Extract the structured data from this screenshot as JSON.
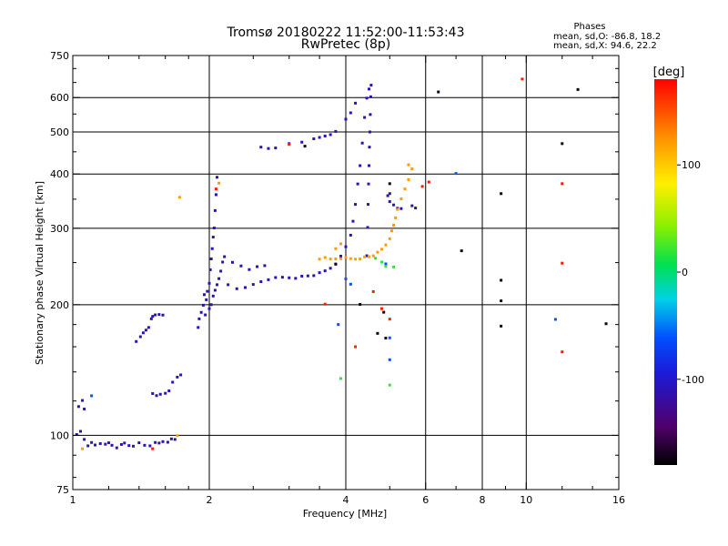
{
  "chart_data": {
    "type": "scatter",
    "title": "Tromsø 20180222 11:52:00-11:53:43",
    "subtitle": "RwPretec (8p)",
    "xlabel": "Frequency [MHz]",
    "ylabel": "Stationary phase Virtual Height [km]",
    "x_scale": "log",
    "y_scale": "log",
    "xlim": [
      1,
      16
    ],
    "ylim": [
      75,
      750
    ],
    "x_ticks": [
      1,
      2,
      4,
      6,
      8,
      10,
      16
    ],
    "x_ticklabels": [
      "1",
      "2",
      "4",
      "6",
      "8",
      "10",
      "16"
    ],
    "y_ticks": [
      75,
      100,
      200,
      300,
      400,
      500,
      600,
      750
    ],
    "y_ticklabels": [
      "75",
      "100",
      "200",
      "300",
      "400",
      "500",
      "600",
      "750"
    ],
    "x_gridlines": [
      2,
      4,
      6,
      8,
      10
    ],
    "y_gridlines": [
      100,
      200,
      300,
      400,
      500,
      600
    ],
    "grid": true,
    "stats": {
      "header": "Phases",
      "line_o": "mean, sd,O: -86.8, 18.2",
      "line_x": "mean, sd,X: 94.6, 22.2"
    },
    "colorbar": {
      "label": "[deg]",
      "range": [
        -180,
        180
      ],
      "ticks": [
        100,
        0,
        -100
      ],
      "ticklabels": [
        "100",
        "0",
        "-100"
      ]
    },
    "series": [
      {
        "color_value": -110,
        "comment": "O-mode traces (blue)",
        "points": [
          [
            1.02,
            100
          ],
          [
            1.04,
            102
          ],
          [
            1.06,
            98
          ],
          [
            1.08,
            95
          ],
          [
            1.1,
            96
          ],
          [
            1.12,
            95
          ],
          [
            1.15,
            96
          ],
          [
            1.18,
            95
          ],
          [
            1.2,
            96
          ],
          [
            1.22,
            95
          ],
          [
            1.25,
            94
          ],
          [
            1.28,
            95
          ],
          [
            1.3,
            96
          ],
          [
            1.33,
            95
          ],
          [
            1.36,
            94
          ],
          [
            1.4,
            96
          ],
          [
            1.44,
            95
          ],
          [
            1.48,
            95
          ],
          [
            1.52,
            96
          ],
          [
            1.55,
            96
          ],
          [
            1.58,
            97
          ],
          [
            1.62,
            96
          ],
          [
            1.65,
            98
          ],
          [
            1.68,
            98
          ],
          [
            1.03,
            117
          ],
          [
            1.05,
            120
          ],
          [
            1.06,
            115
          ],
          [
            1.38,
            165
          ],
          [
            1.41,
            168
          ],
          [
            1.43,
            172
          ],
          [
            1.45,
            175
          ],
          [
            1.47,
            178
          ],
          [
            1.49,
            185
          ],
          [
            1.5,
            188
          ],
          [
            1.52,
            190
          ],
          [
            1.55,
            189
          ],
          [
            1.58,
            189
          ],
          [
            1.5,
            125
          ],
          [
            1.53,
            124
          ],
          [
            1.56,
            124
          ],
          [
            1.6,
            125
          ],
          [
            1.63,
            127
          ],
          [
            1.66,
            132
          ],
          [
            1.7,
            136
          ],
          [
            1.73,
            138
          ],
          [
            1.89,
            178
          ],
          [
            1.9,
            185
          ],
          [
            1.92,
            192
          ],
          [
            1.94,
            200
          ],
          [
            1.95,
            210
          ],
          [
            1.97,
            205
          ],
          [
            1.98,
            215
          ],
          [
            2,
            225
          ],
          [
            2.01,
            240
          ],
          [
            2.02,
            255
          ],
          [
            2.03,
            270
          ],
          [
            2.04,
            285
          ],
          [
            2.05,
            300
          ],
          [
            2.06,
            330
          ],
          [
            2.07,
            360
          ],
          [
            2.08,
            392
          ],
          [
            2.02,
            200
          ],
          [
            2.04,
            210
          ],
          [
            2.06,
            215
          ],
          [
            2.08,
            222
          ],
          [
            2.1,
            230
          ],
          [
            2.12,
            240
          ],
          [
            2.14,
            250
          ],
          [
            2.16,
            258
          ],
          [
            1.96,
            190
          ],
          [
            2.0,
            195
          ],
          [
            2.2,
            222
          ],
          [
            2.3,
            218
          ],
          [
            2.4,
            220
          ],
          [
            2.5,
            222
          ],
          [
            2.6,
            226
          ],
          [
            2.7,
            229
          ],
          [
            2.8,
            230
          ],
          [
            2.9,
            231
          ],
          [
            3.0,
            231
          ],
          [
            3.1,
            231
          ],
          [
            3.2,
            232
          ],
          [
            3.3,
            233
          ],
          [
            3.4,
            234
          ],
          [
            3.5,
            236
          ],
          [
            3.6,
            239
          ],
          [
            3.7,
            243
          ],
          [
            3.8,
            249
          ],
          [
            3.9,
            258
          ],
          [
            4.0,
            272
          ],
          [
            4.1,
            290
          ],
          [
            4.15,
            310
          ],
          [
            4.2,
            340
          ],
          [
            4.25,
            380
          ],
          [
            4.3,
            420
          ],
          [
            4.35,
            470
          ],
          [
            4.4,
            540
          ],
          [
            4.45,
            600
          ],
          [
            4.5,
            625
          ],
          [
            2.25,
            250
          ],
          [
            2.35,
            246
          ],
          [
            2.45,
            242
          ],
          [
            2.55,
            244
          ],
          [
            2.65,
            246
          ],
          [
            4.45,
            260
          ],
          [
            4.47,
            300
          ],
          [
            4.48,
            340
          ],
          [
            4.49,
            380
          ],
          [
            4.5,
            420
          ],
          [
            4.51,
            460
          ],
          [
            4.52,
            500
          ],
          [
            4.53,
            550
          ],
          [
            4.54,
            600
          ],
          [
            4.55,
            640
          ],
          [
            2.6,
            462
          ],
          [
            2.7,
            460
          ],
          [
            2.8,
            458
          ],
          [
            3.0,
            470
          ],
          [
            3.2,
            475
          ],
          [
            3.4,
            480
          ],
          [
            3.5,
            485
          ],
          [
            3.6,
            490
          ],
          [
            3.7,
            495
          ],
          [
            3.8,
            500
          ],
          [
            4.0,
            535
          ],
          [
            4.1,
            555
          ],
          [
            4.2,
            580
          ],
          [
            5.0,
            345
          ],
          [
            5.1,
            340
          ],
          [
            5.2,
            335
          ],
          [
            5.3,
            332
          ],
          [
            5.6,
            338
          ],
          [
            5.7,
            335
          ],
          [
            4.95,
            355
          ],
          [
            5.0,
            360
          ]
        ]
      },
      {
        "color_value": 120,
        "comment": "X-mode trace (yellow)",
        "points": [
          [
            3.5,
            255
          ],
          [
            3.6,
            258
          ],
          [
            3.7,
            254
          ],
          [
            3.8,
            255
          ],
          [
            3.9,
            256
          ],
          [
            4.0,
            256
          ],
          [
            4.1,
            255
          ],
          [
            4.2,
            255
          ],
          [
            4.3,
            256
          ],
          [
            4.4,
            257
          ],
          [
            4.5,
            258
          ],
          [
            4.6,
            260
          ],
          [
            4.7,
            263
          ],
          [
            4.8,
            268
          ],
          [
            4.9,
            275
          ],
          [
            5.0,
            285
          ],
          [
            5.05,
            295
          ],
          [
            5.1,
            305
          ],
          [
            5.15,
            318
          ],
          [
            5.2,
            330
          ],
          [
            5.3,
            350
          ],
          [
            5.4,
            370
          ],
          [
            5.5,
            390
          ],
          [
            5.6,
            410
          ],
          [
            5.5,
            420
          ],
          [
            3.8,
            270
          ],
          [
            3.9,
            275
          ],
          [
            1.05,
            93
          ],
          [
            1.7,
            100
          ],
          [
            1.72,
            355
          ],
          [
            2.1,
            380
          ]
        ]
      },
      {
        "color_value": -60,
        "comment": "cyan/teal scattered points",
        "points": [
          [
            1.1,
            123
          ],
          [
            3.85,
            180
          ],
          [
            4.0,
            230
          ],
          [
            4.1,
            222
          ],
          [
            4.9,
            248
          ],
          [
            5.0,
            168
          ],
          [
            5.0,
            150
          ],
          [
            7.0,
            400
          ],
          [
            11.6,
            185
          ]
        ]
      },
      {
        "color_value": -170,
        "comment": "dark purple points",
        "points": [
          [
            3.25,
            465
          ],
          [
            3.8,
            247
          ],
          [
            4.3,
            200
          ],
          [
            4.7,
            172
          ],
          [
            4.85,
            193
          ],
          [
            4.9,
            167
          ],
          [
            5.0,
            380
          ],
          [
            6.4,
            620
          ],
          [
            7.2,
            265
          ],
          [
            8.8,
            360
          ],
          [
            8.8,
            228
          ],
          [
            8.8,
            205
          ],
          [
            8.8,
            178
          ],
          [
            12.0,
            470
          ],
          [
            13.0,
            628
          ],
          [
            15.0,
            180
          ]
        ]
      },
      {
        "color_value": 170,
        "comment": "red/orange points",
        "points": [
          [
            1.5,
            93
          ],
          [
            2.07,
            370
          ],
          [
            3.0,
            470
          ],
          [
            3.6,
            200
          ],
          [
            4.2,
            160
          ],
          [
            4.6,
            215
          ],
          [
            4.8,
            195
          ],
          [
            5.0,
            185
          ],
          [
            5.9,
            375
          ],
          [
            6.1,
            385
          ],
          [
            9.8,
            660
          ],
          [
            12.0,
            380
          ],
          [
            12.0,
            250
          ],
          [
            12.0,
            155
          ]
        ]
      },
      {
        "color_value": 20,
        "comment": "green points",
        "points": [
          [
            4.65,
            257
          ],
          [
            4.8,
            250
          ],
          [
            4.9,
            245
          ],
          [
            5.1,
            245
          ],
          [
            5.0,
            130
          ],
          [
            3.9,
            135
          ]
        ]
      }
    ]
  }
}
